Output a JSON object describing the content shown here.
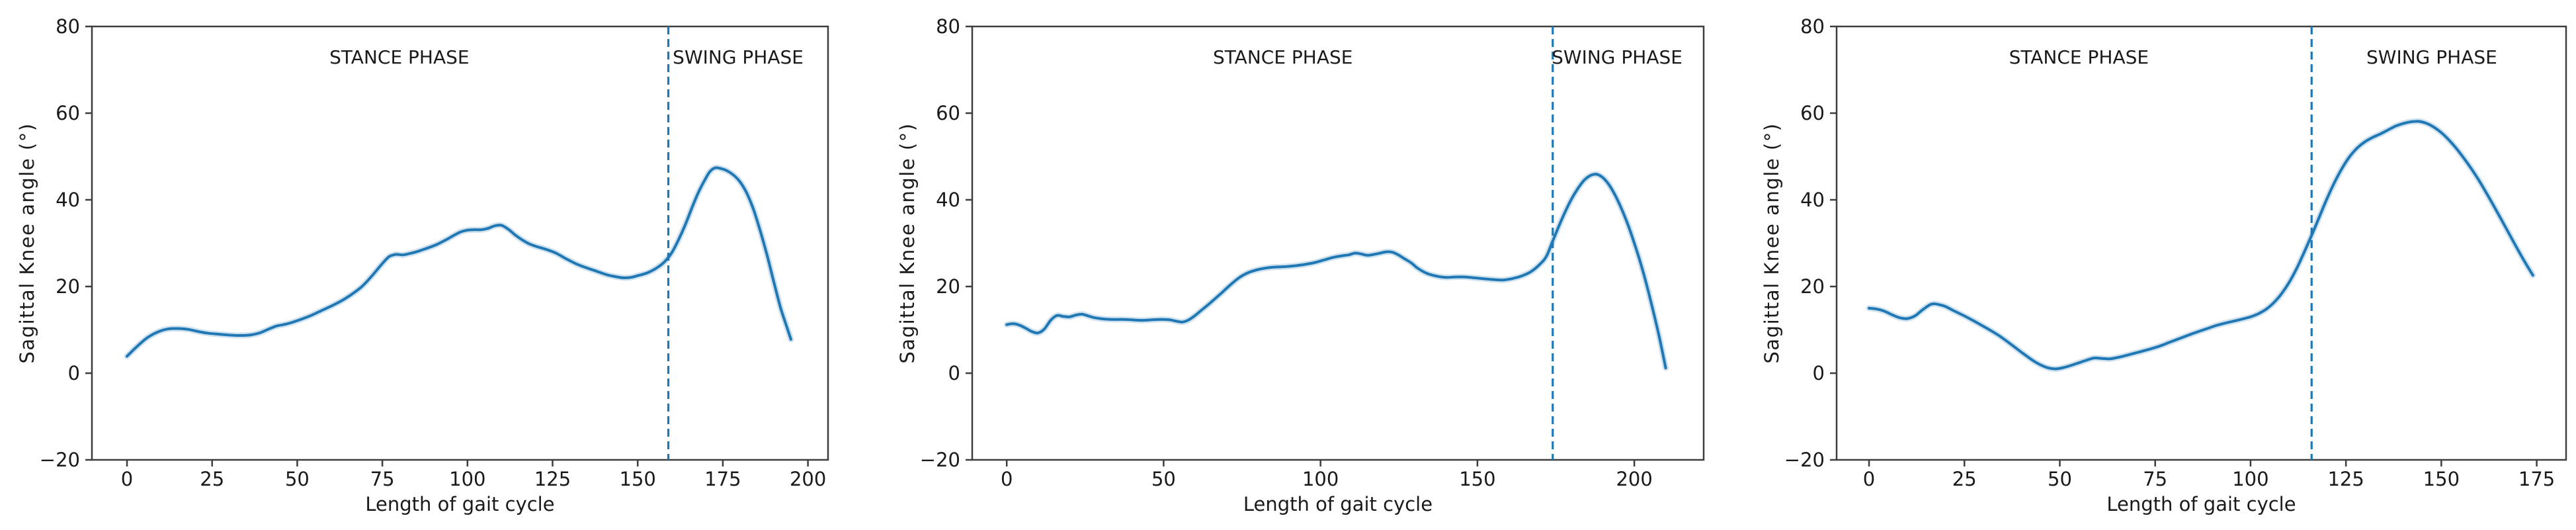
{
  "figure": {
    "background": "#ffffff",
    "line_color": "#1f77b4",
    "band_color": "rgba(31,119,180,0.22)",
    "divider_color": "#1f77b4",
    "spine_color": "#3d3d3d",
    "text_color": "#1a1a1a",
    "stance_label": "STANCE PHASE",
    "swing_label": "SWING PHASE"
  },
  "chart_data": [
    {
      "type": "line",
      "title": "",
      "xlabel": "Length of gait cycle",
      "ylabel": "Sagittal Knee angle (°)",
      "xlim": [
        -10.3,
        205.9
      ],
      "ylim": [
        -20,
        80
      ],
      "x_ticks": [
        0,
        25,
        50,
        75,
        100,
        125,
        150,
        175,
        200
      ],
      "y_ticks": [
        -20,
        0,
        20,
        40,
        60,
        80
      ],
      "grid": false,
      "legend": null,
      "phase_divider_x": 159,
      "annotations": [
        {
          "label": "STANCE PHASE",
          "x": 80,
          "y": 73
        },
        {
          "label": "SWING PHASE",
          "x": 179.5,
          "y": 73
        }
      ],
      "series": [
        {
          "x": [
            0,
            3,
            6,
            9,
            12,
            15,
            18,
            21,
            24,
            27,
            30,
            33,
            36,
            39,
            42,
            44,
            46,
            48,
            51,
            54,
            57,
            60,
            63,
            66,
            69,
            72,
            75,
            77,
            79,
            81,
            83,
            85,
            88,
            91,
            94,
            96,
            98,
            100,
            102,
            104,
            106,
            108,
            110,
            112,
            114,
            116,
            118,
            120,
            123,
            126,
            129,
            132,
            135,
            138,
            141,
            144,
            146,
            148,
            150,
            153,
            156,
            158,
            160,
            162,
            164,
            166,
            168,
            170,
            171,
            172,
            173,
            174,
            176,
            178,
            180,
            182,
            184,
            186,
            188,
            190,
            192,
            194,
            195
          ],
          "y": [
            3.9,
            6.2,
            8.2,
            9.5,
            10.2,
            10.3,
            10.1,
            9.6,
            9.2,
            9.0,
            8.8,
            8.7,
            8.8,
            9.3,
            10.3,
            10.9,
            11.2,
            11.6,
            12.4,
            13.3,
            14.4,
            15.5,
            16.7,
            18.2,
            20.0,
            22.5,
            25.3,
            26.9,
            27.4,
            27.3,
            27.6,
            28.0,
            28.8,
            29.7,
            30.9,
            31.8,
            32.6,
            33.0,
            33.1,
            33.1,
            33.4,
            34.0,
            34.1,
            33.2,
            31.9,
            30.8,
            29.9,
            29.3,
            28.6,
            27.7,
            26.4,
            25.2,
            24.3,
            23.5,
            22.7,
            22.2,
            22.0,
            22.1,
            22.5,
            23.2,
            24.5,
            25.8,
            27.8,
            30.8,
            34.3,
            38.3,
            42.0,
            45.0,
            46.3,
            47.1,
            47.4,
            47.3,
            46.8,
            45.8,
            44.2,
            41.6,
            37.8,
            32.8,
            27.2,
            21.0,
            15.0,
            10.2,
            7.8
          ]
        }
      ]
    },
    {
      "type": "line",
      "title": "",
      "xlabel": "Length of gait cycle",
      "ylabel": "Sagittal Knee angle (°)",
      "xlim": [
        -11.0,
        222.1
      ],
      "ylim": [
        -20,
        80
      ],
      "x_ticks": [
        0,
        50,
        100,
        150,
        200
      ],
      "y_ticks": [
        -20,
        0,
        20,
        40,
        60,
        80
      ],
      "grid": false,
      "legend": null,
      "phase_divider_x": 174,
      "annotations": [
        {
          "label": "STANCE PHASE",
          "x": 88,
          "y": 73
        },
        {
          "label": "SWING PHASE",
          "x": 194.5,
          "y": 73
        }
      ],
      "series": [
        {
          "x": [
            0,
            2,
            4,
            6,
            8,
            10,
            12,
            14,
            16,
            18,
            20,
            22,
            24,
            26,
            28,
            31,
            34,
            37,
            40,
            43,
            46,
            49,
            52,
            54,
            56,
            58,
            60,
            62,
            65,
            68,
            71,
            74,
            77,
            80,
            83,
            86,
            89,
            92,
            95,
            98,
            101,
            104,
            107,
            109,
            111,
            113,
            115,
            117,
            119,
            121,
            123,
            125,
            127,
            129,
            131,
            134,
            137,
            140,
            143,
            146,
            149,
            152,
            155,
            158,
            161,
            164,
            167,
            170,
            172,
            174,
            176,
            178,
            180,
            182,
            184,
            186,
            188,
            190,
            192,
            194,
            196,
            198,
            200,
            202,
            204,
            206,
            208,
            210
          ],
          "y": [
            11.2,
            11.4,
            11.1,
            10.4,
            9.6,
            9.3,
            10.2,
            12.2,
            13.3,
            13.1,
            13.0,
            13.4,
            13.6,
            13.2,
            12.8,
            12.5,
            12.4,
            12.4,
            12.3,
            12.2,
            12.3,
            12.4,
            12.3,
            12.0,
            11.8,
            12.3,
            13.3,
            14.5,
            16.3,
            18.2,
            20.2,
            22.0,
            23.2,
            23.9,
            24.3,
            24.5,
            24.6,
            24.8,
            25.1,
            25.5,
            26.1,
            26.7,
            27.1,
            27.3,
            27.7,
            27.5,
            27.2,
            27.4,
            27.7,
            28.0,
            27.9,
            27.2,
            26.3,
            25.4,
            24.2,
            23.0,
            22.4,
            22.1,
            22.2,
            22.2,
            22.0,
            21.8,
            21.6,
            21.5,
            21.8,
            22.4,
            23.4,
            25.2,
            27.0,
            30.5,
            34.0,
            37.3,
            40.2,
            42.6,
            44.5,
            45.6,
            45.9,
            45.1,
            43.4,
            40.9,
            37.8,
            34.2,
            30.0,
            25.4,
            20.2,
            14.4,
            8.2,
            1.2
          ]
        }
      ]
    },
    {
      "type": "line",
      "title": "",
      "xlabel": "Length of gait cycle",
      "ylabel": "Sagittal Knee angle (°)",
      "xlim": [
        -8.5,
        182.7
      ],
      "ylim": [
        -20,
        80
      ],
      "x_ticks": [
        0,
        25,
        50,
        75,
        100,
        125,
        150,
        175
      ],
      "y_ticks": [
        -20,
        0,
        20,
        40,
        60,
        80
      ],
      "grid": false,
      "legend": null,
      "phase_divider_x": 116,
      "annotations": [
        {
          "label": "STANCE PHASE",
          "x": 55,
          "y": 73
        },
        {
          "label": "SWING PHASE",
          "x": 147.5,
          "y": 73
        }
      ],
      "series": [
        {
          "x": [
            0,
            2,
            4,
            6,
            8,
            10,
            12,
            14,
            16,
            17,
            18,
            20,
            22,
            25,
            28,
            31,
            34,
            37,
            40,
            43,
            45,
            47,
            49,
            51,
            53,
            55,
            57,
            59,
            61,
            63,
            65,
            67,
            70,
            73,
            76,
            79,
            82,
            85,
            88,
            91,
            94,
            97,
            100,
            102,
            104,
            106,
            108,
            110,
            112,
            114,
            116,
            118,
            120,
            122,
            124,
            126,
            128,
            130,
            132,
            134,
            136,
            138,
            140,
            142,
            144,
            146,
            148,
            150,
            152,
            154,
            156,
            158,
            160,
            162,
            164,
            166,
            168,
            170,
            172,
            174
          ],
          "y": [
            15.0,
            14.8,
            14.3,
            13.5,
            12.8,
            12.6,
            13.2,
            14.6,
            15.8,
            16.0,
            15.9,
            15.4,
            14.5,
            13.2,
            11.8,
            10.3,
            8.7,
            6.8,
            4.8,
            2.9,
            1.9,
            1.2,
            1.0,
            1.3,
            1.8,
            2.4,
            3.0,
            3.5,
            3.4,
            3.3,
            3.6,
            4.0,
            4.7,
            5.4,
            6.2,
            7.2,
            8.2,
            9.2,
            10.1,
            11.0,
            11.7,
            12.3,
            13.0,
            13.7,
            14.7,
            16.2,
            18.2,
            20.8,
            24.0,
            27.8,
            31.8,
            36.0,
            40.2,
            44.0,
            47.3,
            50.0,
            52.0,
            53.4,
            54.4,
            55.2,
            56.1,
            57.0,
            57.6,
            58.0,
            58.1,
            57.7,
            56.8,
            55.5,
            53.8,
            51.8,
            49.5,
            47.0,
            44.3,
            41.3,
            38.2,
            35.0,
            31.8,
            28.6,
            25.5,
            22.6
          ]
        }
      ]
    }
  ]
}
